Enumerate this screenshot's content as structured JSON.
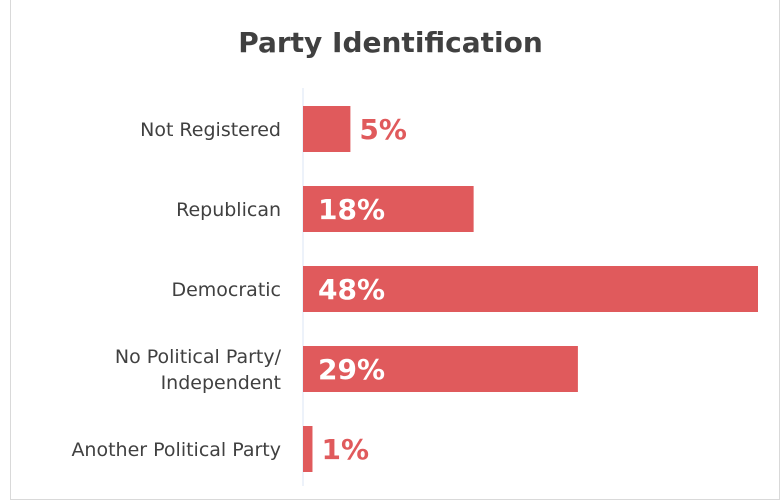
{
  "chart_data": {
    "type": "bar",
    "orientation": "horizontal",
    "title": "Party Identification",
    "categories": [
      [
        "Not Registered"
      ],
      [
        "Republican"
      ],
      [
        "Democratic"
      ],
      [
        "No Political Party/",
        "Independent"
      ],
      [
        "Another Political Party"
      ]
    ],
    "values": [
      5,
      18,
      48,
      29,
      1
    ],
    "data_labels": [
      "5%",
      "18%",
      "48%",
      "29%",
      "1%"
    ],
    "xlim": [
      0,
      48
    ],
    "grid": false,
    "legend": "none"
  },
  "colors": {
    "bar": "#e05a5c",
    "label_inside": "#ffffff",
    "label_outside": "#e05a5c",
    "axis": "#dbe6f5"
  }
}
